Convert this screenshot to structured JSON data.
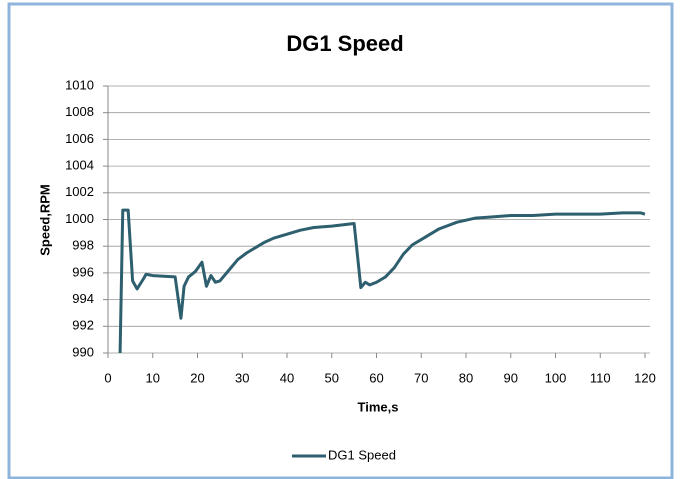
{
  "chart_data": {
    "type": "line",
    "title": "DG1 Speed",
    "x_label": "Time,s",
    "y_label": "Speed,RPM",
    "x": [
      2.7,
      3.3,
      4.5,
      5.5,
      6.5,
      8,
      8.5,
      10,
      15,
      16.3,
      17,
      18,
      19.5,
      21,
      22,
      23,
      24,
      25,
      27,
      29,
      31,
      33,
      35,
      37,
      40,
      43,
      46,
      50,
      55,
      56.5,
      57.5,
      58.5,
      60,
      62,
      64,
      66,
      68,
      70,
      74,
      78,
      82,
      86,
      90,
      95,
      100,
      105,
      110,
      115,
      119,
      120
    ],
    "series": [
      {
        "name": "DG1 Speed",
        "color": "#2e5f6e",
        "values": [
          990,
          1000.7,
          1000.7,
          995.4,
          994.8,
          995.6,
          995.9,
          995.8,
          995.7,
          992.6,
          995.0,
          995.7,
          996.1,
          996.8,
          995.0,
          995.8,
          995.3,
          995.4,
          996.2,
          997.0,
          997.5,
          997.9,
          998.3,
          998.6,
          998.9,
          999.2,
          999.4,
          999.5,
          999.7,
          994.9,
          995.3,
          995.1,
          995.3,
          995.7,
          996.4,
          997.4,
          998.1,
          998.5,
          999.3,
          999.8,
          1000.1,
          1000.2,
          1000.3,
          1000.3,
          1000.4,
          1000.4,
          1000.4,
          1000.5,
          1000.5,
          1000.4
        ]
      }
    ],
    "xlim": [
      0,
      120
    ],
    "xticks": [
      0,
      10,
      20,
      30,
      40,
      50,
      60,
      70,
      80,
      90,
      100,
      110,
      120
    ],
    "ylim": [
      990,
      1010
    ],
    "yticks": [
      990,
      992,
      994,
      996,
      998,
      1000,
      1002,
      1004,
      1006,
      1008,
      1010
    ],
    "grid": true,
    "legend": "bottom"
  }
}
